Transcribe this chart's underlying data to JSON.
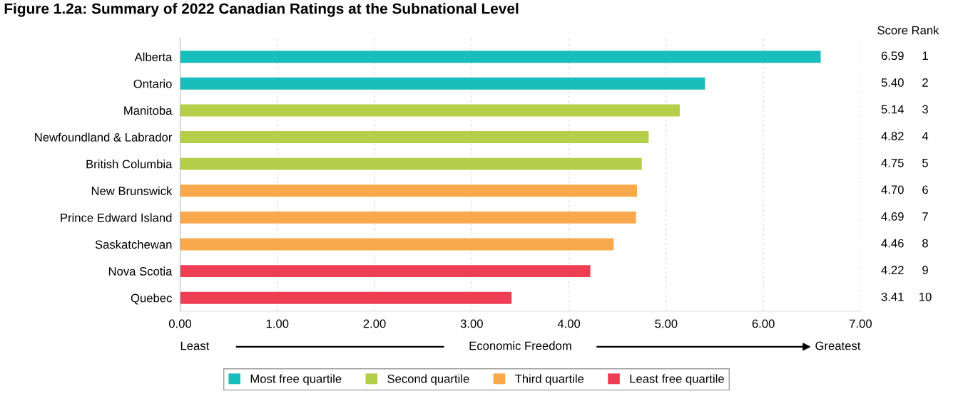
{
  "chart_data": {
    "type": "bar",
    "orientation": "horizontal",
    "stacked": true,
    "title": "Figure 1.2a: Summary of 2022 Canadian Ratings at the Subnational Level",
    "categories": [
      "Alberta",
      "Ontario",
      "Manitoba",
      "Newfoundland & Labrador",
      "British Columbia",
      "New Brunswick",
      "Prince Edward Island",
      "Saskatchewan",
      "Nova Scotia",
      "Quebec"
    ],
    "series": [
      {
        "name": "Most free quartile",
        "color": "#17bebb",
        "values": [
          6.59,
          5.4,
          null,
          null,
          null,
          null,
          null,
          null,
          null,
          null
        ]
      },
      {
        "name": "Second quartile",
        "color": "#b5cf4a",
        "values": [
          null,
          null,
          5.14,
          4.82,
          4.75,
          null,
          null,
          null,
          null,
          null
        ]
      },
      {
        "name": "Third quartile",
        "color": "#f9a94b",
        "values": [
          null,
          null,
          null,
          null,
          null,
          4.7,
          4.69,
          4.46,
          null,
          null
        ]
      },
      {
        "name": "Least free quartile",
        "color": "#ee3e54",
        "values": [
          null,
          null,
          null,
          null,
          null,
          null,
          null,
          null,
          4.22,
          3.41
        ]
      }
    ],
    "xlim": [
      0,
      7
    ],
    "xticks": [
      {
        "value": 0,
        "label": "0.00"
      },
      {
        "value": 1,
        "label": "1.00"
      },
      {
        "value": 2,
        "label": "2.00"
      },
      {
        "value": 3,
        "label": "3.00"
      },
      {
        "value": 4,
        "label": "4.00"
      },
      {
        "value": 5,
        "label": "5.00"
      },
      {
        "value": 6,
        "label": "6.00"
      },
      {
        "value": 7,
        "label": "7.00"
      }
    ],
    "grid": "x",
    "legend": "bottom",
    "annotations": [
      "Score",
      "Rank",
      "Least",
      "Economic Freedom",
      "Greatest",
      "6.59",
      "1",
      "5.40",
      "2",
      "5.14",
      "3",
      "4.82",
      "4",
      "4.75",
      "5",
      "4.70",
      "6",
      "4.69",
      "7",
      "4.46",
      "8",
      "4.22",
      "9",
      "3.41",
      "10"
    ]
  }
}
